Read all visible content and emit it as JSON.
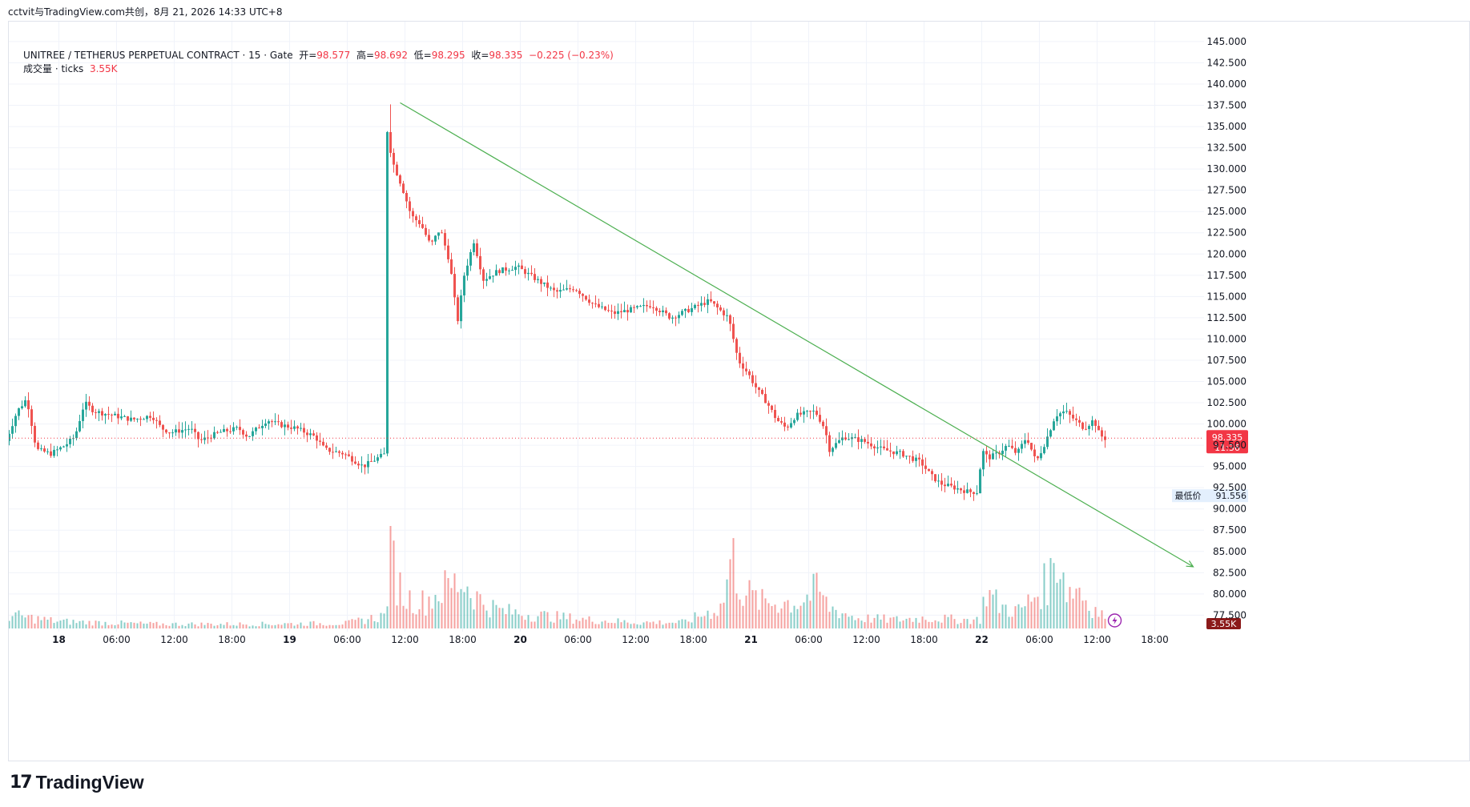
{
  "header": {
    "text": "cctvit与TradingView.com共创，8月 21, 2026 14:33 UTC+8"
  },
  "legend": {
    "symbol": "UNITREE / TETHERUS PERPETUAL CONTRACT · 15 · Gate",
    "open_label": "开=",
    "open": "98.577",
    "high_label": "高=",
    "high": "98.692",
    "low_label": "低=",
    "low": "98.295",
    "close_label": "收=",
    "close": "98.335",
    "change": "−0.225 (−0.23%)",
    "volume_label": "成交量 · ticks",
    "volume": "3.55K"
  },
  "price_label": {
    "value": "98.335",
    "countdown": "11:36"
  },
  "low_label": {
    "label": "最低价",
    "value": "91.556"
  },
  "volume_badge": "3.55K",
  "brand": {
    "logo": "17",
    "name": "TradingView"
  },
  "colors": {
    "up": "#26a69a",
    "down": "#ef5350",
    "trendline": "#4caf50",
    "last_price": "#f23645",
    "grid": "#f0f3fa"
  },
  "chart_data": {
    "type": "candlestick",
    "timeframe": "15",
    "y_ticks": [
      "145.000",
      "142.500",
      "140.000",
      "137.500",
      "135.000",
      "132.500",
      "130.000",
      "127.500",
      "125.000",
      "122.500",
      "120.000",
      "117.500",
      "115.000",
      "112.500",
      "110.000",
      "107.500",
      "105.000",
      "102.500",
      "100.000",
      "97.500",
      "95.000",
      "92.500",
      "90.000",
      "87.500",
      "85.000",
      "82.500",
      "80.000",
      "77.500"
    ],
    "x_ticks": [
      {
        "label": "18",
        "day": true
      },
      {
        "label": "06:00",
        "day": false
      },
      {
        "label": "12:00",
        "day": false
      },
      {
        "label": "18:00",
        "day": false
      },
      {
        "label": "19",
        "day": true
      },
      {
        "label": "06:00",
        "day": false
      },
      {
        "label": "12:00",
        "day": false
      },
      {
        "label": "18:00",
        "day": false
      },
      {
        "label": "20",
        "day": true
      },
      {
        "label": "06:00",
        "day": false
      },
      {
        "label": "12:00",
        "day": false
      },
      {
        "label": "18:00",
        "day": false
      },
      {
        "label": "21",
        "day": true
      },
      {
        "label": "06:00",
        "day": false
      },
      {
        "label": "12:00",
        "day": false
      },
      {
        "label": "18:00",
        "day": false
      },
      {
        "label": "22",
        "day": true
      },
      {
        "label": "06:00",
        "day": false
      },
      {
        "label": "12:00",
        "day": false
      },
      {
        "label": "18:00",
        "day": false
      }
    ],
    "price_path": [
      {
        "t": -5.5,
        "p": 97.0
      },
      {
        "t": -4,
        "p": 101.5
      },
      {
        "t": -3,
        "p": 103.0
      },
      {
        "t": -2,
        "p": 97.0
      },
      {
        "t": -0.5,
        "p": 96.5
      },
      {
        "t": 1,
        "p": 97.5
      },
      {
        "t": 2,
        "p": 98.5
      },
      {
        "t": 3,
        "p": 102.5
      },
      {
        "t": 4,
        "p": 101.5
      },
      {
        "t": 6,
        "p": 101.0
      },
      {
        "t": 8,
        "p": 100.5
      },
      {
        "t": 10,
        "p": 101.0
      },
      {
        "t": 11,
        "p": 99.5
      },
      {
        "t": 12,
        "p": 99.0
      },
      {
        "t": 14,
        "p": 99.5
      },
      {
        "t": 15,
        "p": 98.0
      },
      {
        "t": 17,
        "p": 99.0
      },
      {
        "t": 19,
        "p": 99.5
      },
      {
        "t": 20,
        "p": 98.5
      },
      {
        "t": 22,
        "p": 100.5
      },
      {
        "t": 23,
        "p": 100.0
      },
      {
        "t": 25,
        "p": 99.5
      },
      {
        "t": 27,
        "p": 98.5
      },
      {
        "t": 28,
        "p": 97.0
      },
      {
        "t": 30,
        "p": 96.5
      },
      {
        "t": 32,
        "p": 95.0
      },
      {
        "t": 33.5,
        "p": 96.0
      },
      {
        "t": 34.3,
        "p": 96.5
      },
      {
        "t": 34.5,
        "p": 134.5
      },
      {
        "t": 35,
        "p": 131.0
      },
      {
        "t": 36,
        "p": 128.0
      },
      {
        "t": 37,
        "p": 124.5
      },
      {
        "t": 38,
        "p": 123.5
      },
      {
        "t": 39,
        "p": 121.0
      },
      {
        "t": 40,
        "p": 123.0
      },
      {
        "t": 41,
        "p": 119.0
      },
      {
        "t": 41.8,
        "p": 112.0
      },
      {
        "t": 42.5,
        "p": 117.5
      },
      {
        "t": 43.5,
        "p": 121.5
      },
      {
        "t": 44.5,
        "p": 117.0
      },
      {
        "t": 46,
        "p": 118.0
      },
      {
        "t": 48,
        "p": 118.5
      },
      {
        "t": 50,
        "p": 117.0
      },
      {
        "t": 52,
        "p": 115.5
      },
      {
        "t": 54,
        "p": 116.0
      },
      {
        "t": 56,
        "p": 114.0
      },
      {
        "t": 58,
        "p": 113.0
      },
      {
        "t": 60,
        "p": 113.5
      },
      {
        "t": 62,
        "p": 114.0
      },
      {
        "t": 64,
        "p": 112.5
      },
      {
        "t": 66,
        "p": 113.5
      },
      {
        "t": 68,
        "p": 114.5
      },
      {
        "t": 69,
        "p": 113.5
      },
      {
        "t": 70,
        "p": 112.5
      },
      {
        "t": 71,
        "p": 107.5
      },
      {
        "t": 72,
        "p": 106.0
      },
      {
        "t": 73,
        "p": 104.0
      },
      {
        "t": 74,
        "p": 102.5
      },
      {
        "t": 75,
        "p": 100.5
      },
      {
        "t": 76,
        "p": 99.5
      },
      {
        "t": 77,
        "p": 101.0
      },
      {
        "t": 79,
        "p": 101.5
      },
      {
        "t": 80,
        "p": 99.5
      },
      {
        "t": 80.5,
        "p": 97.0
      },
      {
        "t": 82,
        "p": 98.5
      },
      {
        "t": 84,
        "p": 98.0
      },
      {
        "t": 86,
        "p": 97.0
      },
      {
        "t": 88,
        "p": 96.5
      },
      {
        "t": 90,
        "p": 95.5
      },
      {
        "t": 91,
        "p": 94.0
      },
      {
        "t": 92,
        "p": 93.0
      },
      {
        "t": 93.5,
        "p": 92.5
      },
      {
        "t": 95,
        "p": 92.0
      },
      {
        "t": 96,
        "p": 92.0
      },
      {
        "t": 96.3,
        "p": 97.0
      },
      {
        "t": 97,
        "p": 96.0
      },
      {
        "t": 98,
        "p": 96.5
      },
      {
        "t": 99,
        "p": 97.5
      },
      {
        "t": 100,
        "p": 96.5
      },
      {
        "t": 101,
        "p": 98.5
      },
      {
        "t": 102,
        "p": 95.5
      },
      {
        "t": 103,
        "p": 98.0
      },
      {
        "t": 104,
        "p": 101.0
      },
      {
        "t": 105,
        "p": 101.5
      },
      {
        "t": 106,
        "p": 100.5
      },
      {
        "t": 107,
        "p": 99.5
      },
      {
        "t": 108,
        "p": 100.5
      },
      {
        "t": 108.5,
        "p": 99.0
      },
      {
        "t": 109,
        "p": 98.3
      }
    ],
    "volume_path": [
      {
        "t": -5,
        "v": 0.15
      },
      {
        "t": 0,
        "v": 0.08
      },
      {
        "t": 10,
        "v": 0.05
      },
      {
        "t": 20,
        "v": 0.05
      },
      {
        "t": 30,
        "v": 0.06
      },
      {
        "t": 34,
        "v": 0.15
      },
      {
        "t": 34.5,
        "v": 1.0
      },
      {
        "t": 35,
        "v": 0.6
      },
      {
        "t": 36,
        "v": 0.35
      },
      {
        "t": 38,
        "v": 0.3
      },
      {
        "t": 40,
        "v": 0.45
      },
      {
        "t": 42,
        "v": 0.55
      },
      {
        "t": 44,
        "v": 0.3
      },
      {
        "t": 46,
        "v": 0.2
      },
      {
        "t": 50,
        "v": 0.15
      },
      {
        "t": 55,
        "v": 0.1
      },
      {
        "t": 60,
        "v": 0.07
      },
      {
        "t": 65,
        "v": 0.07
      },
      {
        "t": 69,
        "v": 0.25
      },
      {
        "t": 70,
        "v": 0.85
      },
      {
        "t": 71,
        "v": 0.45
      },
      {
        "t": 73,
        "v": 0.3
      },
      {
        "t": 75,
        "v": 0.3
      },
      {
        "t": 77,
        "v": 0.3
      },
      {
        "t": 79,
        "v": 0.45
      },
      {
        "t": 80,
        "v": 0.25
      },
      {
        "t": 83,
        "v": 0.12
      },
      {
        "t": 87,
        "v": 0.1
      },
      {
        "t": 90,
        "v": 0.12
      },
      {
        "t": 94,
        "v": 0.1
      },
      {
        "t": 96,
        "v": 0.1
      },
      {
        "t": 96.3,
        "v": 0.45
      },
      {
        "t": 98,
        "v": 0.25
      },
      {
        "t": 100,
        "v": 0.2
      },
      {
        "t": 103,
        "v": 0.55
      },
      {
        "t": 104,
        "v": 0.9
      },
      {
        "t": 105,
        "v": 0.4
      },
      {
        "t": 106,
        "v": 0.5
      },
      {
        "t": 107,
        "v": 0.3
      },
      {
        "t": 108,
        "v": 0.2
      },
      {
        "t": 109,
        "v": 0.12
      }
    ],
    "bar_count": 115,
    "first_bar": -5.5,
    "t_per_hour": 1,
    "trendline": {
      "start": {
        "t": 35.5,
        "p": 137.8
      },
      "end": {
        "t": 118,
        "p": 83.2
      }
    },
    "last_price": 98.335,
    "period_low": 91.556,
    "price_range": [
      76.5,
      146.5
    ]
  }
}
